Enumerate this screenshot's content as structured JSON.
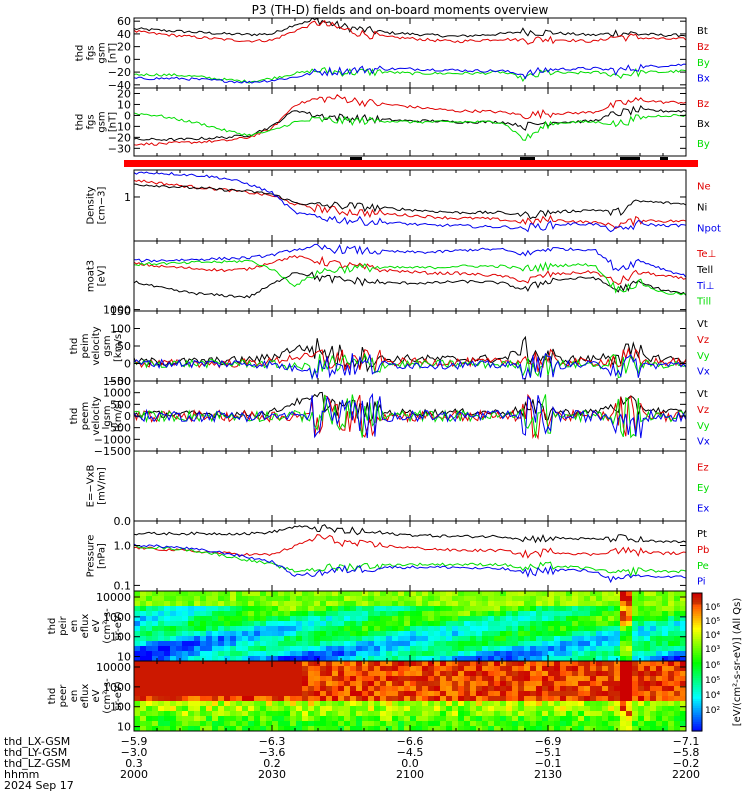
{
  "title": "P3 (TH-D) fields and on-board moments overview",
  "colors": {
    "black": "#000000",
    "red": "#e00000",
    "green": "#00dd00",
    "blue": "#0000ee",
    "flag": "#ff0000"
  },
  "chart_data": [
    {
      "type": "line",
      "ylabel": [
        "thd",
        "fgs",
        "gsm",
        "[nT]"
      ],
      "yrange": [
        -45,
        65
      ],
      "ticks": [
        {
          "v": 60,
          "t": "60"
        },
        {
          "v": 40,
          "t": "40"
        },
        {
          "v": 20,
          "t": "20"
        },
        {
          "v": 0,
          "t": "0"
        },
        {
          "v": -20,
          "t": "−20"
        },
        {
          "v": -40,
          "t": "−40"
        }
      ],
      "series": [
        {
          "name": "Bt",
          "color": "#000000",
          "base": [
            48,
            46,
            44,
            42,
            40,
            39,
            40,
            55,
            62,
            52,
            46,
            42,
            40,
            38,
            36,
            38,
            40,
            44,
            42,
            40,
            38,
            42,
            40,
            38,
            38
          ]
        },
        {
          "name": "Bz",
          "color": "#e00000",
          "base": [
            44,
            40,
            37,
            34,
            31,
            29,
            30,
            45,
            58,
            48,
            40,
            35,
            33,
            30,
            28,
            30,
            32,
            30,
            32,
            30,
            28,
            36,
            34,
            32,
            32
          ]
        },
        {
          "name": "By",
          "color": "#00dd00",
          "base": [
            -24,
            -24,
            -25,
            -28,
            -32,
            -35,
            -30,
            -22,
            -18,
            -20,
            -20,
            -20,
            -22,
            -22,
            -22,
            -22,
            -20,
            -30,
            -20,
            -22,
            -20,
            -25,
            -20,
            -20,
            -18
          ]
        },
        {
          "name": "Bx",
          "color": "#0000ee",
          "base": [
            -30,
            -30,
            -30,
            -32,
            -34,
            -36,
            -33,
            -28,
            -20,
            -18,
            -16,
            -15,
            -15,
            -16,
            -17,
            -18,
            -18,
            -24,
            -16,
            -15,
            -14,
            -18,
            -12,
            -10,
            -8
          ]
        }
      ]
    },
    {
      "type": "line",
      "ylabel": [
        "thd",
        "fgs",
        "gsm",
        "[nT]"
      ],
      "yrange": [
        -37,
        25
      ],
      "ticks": [
        {
          "v": 20,
          "t": "20"
        },
        {
          "v": 10,
          "t": "10"
        },
        {
          "v": 0,
          "t": "0"
        },
        {
          "v": -10,
          "t": "−10"
        },
        {
          "v": -20,
          "t": "−20"
        },
        {
          "v": -30,
          "t": "−30"
        }
      ],
      "series": [
        {
          "name": "Bz",
          "color": "#e00000",
          "base": [
            -26,
            -26,
            -25,
            -24,
            -23,
            -20,
            -12,
            10,
            15,
            16,
            12,
            10,
            8,
            6,
            4,
            4,
            3,
            0,
            2,
            2,
            3,
            10,
            14,
            12,
            12
          ]
        },
        {
          "name": "Bx",
          "color": "#000000",
          "base": [
            -22,
            -22,
            -22,
            -21,
            -20,
            -18,
            -10,
            5,
            0,
            -2,
            -3,
            -4,
            -5,
            -5,
            -6,
            -6,
            -6,
            -10,
            -6,
            -6,
            -5,
            2,
            5,
            4,
            4
          ]
        },
        {
          "name": "By",
          "color": "#00dd00",
          "base": [
            2,
            0,
            -4,
            -8,
            -14,
            -18,
            -14,
            -6,
            -4,
            -5,
            -5,
            -5,
            -6,
            -6,
            -6,
            -6,
            -6,
            -22,
            -8,
            -6,
            -6,
            -8,
            -2,
            0,
            0
          ]
        }
      ]
    },
    {
      "type": "line",
      "ylabel": [
        "Density",
        "[cm−3]"
      ],
      "yrange": [
        0,
        100
      ],
      "ticks": [
        {
          "v": 62,
          "t": "1"
        }
      ],
      "series": [
        {
          "name": "Ne",
          "color": "#e00000",
          "base": [
            86,
            82,
            78,
            75,
            72,
            68,
            64,
            52,
            46,
            42,
            40,
            38,
            36,
            34,
            32,
            32,
            30,
            26,
            30,
            28,
            26,
            22,
            30,
            28,
            28
          ]
        },
        {
          "name": "Ni",
          "color": "#000000",
          "base": [
            80,
            78,
            76,
            74,
            72,
            70,
            66,
            54,
            50,
            50,
            48,
            46,
            44,
            42,
            40,
            40,
            40,
            36,
            40,
            42,
            44,
            40,
            56,
            54,
            52
          ]
        },
        {
          "name": "Npot",
          "color": "#0000ee",
          "base": [
            96,
            96,
            94,
            92,
            88,
            80,
            68,
            40,
            34,
            30,
            28,
            26,
            24,
            22,
            22,
            20,
            20,
            18,
            22,
            24,
            24,
            14,
            24,
            22,
            22
          ]
        }
      ]
    },
    {
      "type": "line",
      "ylabel": [
        "moat3",
        "[eV]"
      ],
      "yrange": [
        0,
        100
      ],
      "ticks": [
        {
          "v": 2,
          "t": "1000"
        }
      ],
      "series": [
        {
          "name": "Te⊥",
          "color": "#e00000",
          "base": [
            68,
            64,
            62,
            60,
            58,
            60,
            70,
            78,
            72,
            66,
            62,
            58,
            56,
            54,
            54,
            52,
            50,
            42,
            52,
            54,
            56,
            40,
            56,
            50,
            46
          ]
        },
        {
          "name": "Tell",
          "color": "#000000",
          "base": [
            42,
            34,
            28,
            24,
            22,
            20,
            38,
            56,
            48,
            44,
            42,
            40,
            40,
            40,
            42,
            42,
            40,
            30,
            44,
            46,
            48,
            30,
            40,
            30,
            24
          ]
        },
        {
          "name": "Ti⊥",
          "color": "#0000ee",
          "base": [
            72,
            72,
            73,
            74,
            75,
            76,
            80,
            88,
            90,
            88,
            86,
            85,
            84,
            84,
            86,
            88,
            88,
            80,
            90,
            88,
            88,
            60,
            72,
            60,
            50
          ]
        },
        {
          "name": "Till",
          "color": "#00dd00",
          "base": [
            66,
            68,
            68,
            70,
            70,
            72,
            60,
            36,
            56,
            60,
            62,
            62,
            62,
            62,
            64,
            64,
            64,
            60,
            64,
            66,
            66,
            30,
            40,
            26,
            24
          ]
        }
      ]
    },
    {
      "type": "line",
      "ylabel": [
        "thd",
        "peim",
        "velocity",
        "gsm",
        "[km/s]"
      ],
      "yrange": [
        -50,
        150
      ],
      "ticks": [
        {
          "v": 150,
          "t": "150"
        },
        {
          "v": 100,
          "t": "100"
        },
        {
          "v": 50,
          "t": "50"
        },
        {
          "v": 0,
          "t": "0"
        },
        {
          "v": -50,
          "t": "−50"
        }
      ],
      "series": [
        {
          "name": "Vt",
          "color": "#000000",
          "base": [
            5,
            5,
            5,
            6,
            8,
            10,
            18,
            45,
            40,
            20,
            15,
            12,
            14,
            12,
            12,
            14,
            12,
            40,
            14,
            12,
            12,
            30,
            20,
            14,
            12
          ]
        },
        {
          "name": "Vz",
          "color": "#e00000",
          "base": [
            0,
            0,
            0,
            0,
            0,
            2,
            5,
            20,
            15,
            8,
            5,
            4,
            4,
            4,
            4,
            4,
            4,
            10,
            4,
            4,
            4,
            10,
            6,
            4,
            4
          ]
        },
        {
          "name": "Vy",
          "color": "#00dd00",
          "base": [
            0,
            0,
            0,
            0,
            0,
            0,
            -2,
            -10,
            -8,
            -4,
            -2,
            -2,
            -2,
            -2,
            -2,
            -2,
            -2,
            -6,
            -2,
            -2,
            -2,
            -8,
            -4,
            -2,
            -2
          ]
        },
        {
          "name": "Vx",
          "color": "#0000ee",
          "base": [
            0,
            0,
            0,
            0,
            0,
            0,
            -3,
            -14,
            -10,
            -6,
            -4,
            -4,
            -4,
            -4,
            -4,
            -4,
            -4,
            -10,
            -4,
            -4,
            -4,
            -10,
            -6,
            -4,
            -4
          ]
        }
      ]
    },
    {
      "type": "line",
      "ylabel": [
        "thd",
        "peem",
        "velocity",
        "gsm",
        "[km/s]"
      ],
      "yrange": [
        -1500,
        1500
      ],
      "ticks": [
        {
          "v": 1500,
          "t": "1500"
        },
        {
          "v": 1000,
          "t": "1000"
        },
        {
          "v": 500,
          "t": "500"
        },
        {
          "v": 0,
          "t": "0"
        },
        {
          "v": -500,
          "t": "−500"
        },
        {
          "v": -1000,
          "t": "−1000"
        },
        {
          "v": -1500,
          "t": "−1500"
        }
      ],
      "series": [
        {
          "name": "Vt",
          "color": "#000000",
          "base": [
            80,
            80,
            80,
            80,
            80,
            90,
            150,
            600,
            700,
            400,
            200,
            150,
            150,
            150,
            160,
            160,
            160,
            300,
            180,
            160,
            160,
            500,
            350,
            200,
            160
          ]
        },
        {
          "name": "Vz",
          "color": "#e00000",
          "base": [
            0,
            0,
            0,
            0,
            0,
            0,
            0,
            0,
            0,
            0,
            0,
            0,
            0,
            0,
            0,
            0,
            0,
            0,
            0,
            0,
            0,
            0,
            0,
            0,
            0
          ]
        },
        {
          "name": "Vy",
          "color": "#00dd00",
          "base": [
            0,
            0,
            0,
            0,
            0,
            0,
            0,
            0,
            0,
            0,
            0,
            0,
            0,
            0,
            0,
            0,
            0,
            0,
            0,
            0,
            0,
            0,
            0,
            0,
            0
          ]
        },
        {
          "name": "Vx",
          "color": "#0000ee",
          "base": [
            0,
            0,
            0,
            0,
            0,
            0,
            0,
            0,
            0,
            0,
            0,
            0,
            0,
            0,
            0,
            0,
            0,
            0,
            0,
            0,
            0,
            0,
            0,
            0,
            0
          ]
        }
      ]
    },
    {
      "type": "line",
      "ylabel": [
        "E=−VxB",
        "[mV/m]"
      ],
      "yrange": [
        0,
        1
      ],
      "ticks": [],
      "series": [
        {
          "name": "Ez",
          "color": "#e00000",
          "base": []
        },
        {
          "name": "Ey",
          "color": "#00dd00",
          "base": []
        },
        {
          "name": "Ex",
          "color": "#0000ee",
          "base": []
        }
      ]
    },
    {
      "type": "line",
      "ylabel": [
        "Pressure",
        "[nPa]"
      ],
      "yrange": [
        0,
        100
      ],
      "ticks": [
        {
          "v": 100,
          "t": "0.0"
        },
        {
          "v": 65,
          "t": "1.0"
        },
        {
          "v": 8,
          "t": "0.1"
        }
      ],
      "series": [
        {
          "name": "Pt",
          "color": "#000000",
          "base": [
            82,
            82,
            82,
            82,
            82,
            82,
            84,
            92,
            90,
            86,
            84,
            82,
            80,
            79,
            78,
            78,
            78,
            74,
            76,
            75,
            74,
            76,
            72,
            70,
            70
          ]
        },
        {
          "name": "Pb",
          "color": "#e00000",
          "base": [
            62,
            60,
            58,
            56,
            54,
            52,
            52,
            64,
            78,
            70,
            66,
            64,
            62,
            60,
            58,
            58,
            58,
            52,
            56,
            54,
            52,
            58,
            56,
            54,
            54
          ]
        },
        {
          "name": "Pe",
          "color": "#00dd00",
          "base": [
            64,
            62,
            60,
            56,
            50,
            44,
            38,
            28,
            32,
            34,
            36,
            37,
            38,
            38,
            38,
            38,
            38,
            32,
            36,
            34,
            32,
            24,
            30,
            28,
            28
          ]
        },
        {
          "name": "Pi",
          "color": "#0000ee",
          "base": [
            66,
            64,
            62,
            58,
            54,
            48,
            42,
            22,
            26,
            30,
            32,
            34,
            34,
            34,
            34,
            32,
            32,
            26,
            30,
            30,
            28,
            14,
            22,
            20,
            20
          ]
        }
      ]
    },
    {
      "type": "heatmap",
      "ylabel": [
        "thd",
        "peir",
        "en",
        "eflux",
        "eV",
        "(cm²-s-",
        "sr-eV)"
      ],
      "ticks": [
        {
          "v": 10000,
          "t": "10000"
        },
        {
          "v": 1000,
          "t": "1000"
        },
        {
          "v": 100,
          "t": "100"
        },
        {
          "v": 10,
          "t": "10"
        }
      ],
      "yrange": [
        6,
        20000
      ],
      "cmap": "ion"
    },
    {
      "type": "heatmap",
      "ylabel": [
        "thd",
        "peer",
        "en",
        "eflux",
        "eV",
        "(cm²-s-",
        "sr-eV)"
      ],
      "ticks": [
        {
          "v": 10000,
          "t": "10000"
        },
        {
          "v": 1000,
          "t": "1000"
        },
        {
          "v": 100,
          "t": "100"
        },
        {
          "v": 10,
          "t": "10"
        }
      ],
      "yrange": [
        6,
        20000
      ],
      "cmap": "electron"
    }
  ],
  "colorbar": {
    "label": "[eV/(cm²-s-sr-eV)] (All Qs)",
    "ticks_top": [
      "10⁶",
      "10⁵",
      "10⁴",
      "10³"
    ],
    "ticks_bottom": [
      "10⁶",
      "10⁵",
      "10⁴",
      "10²"
    ]
  },
  "xaxis": {
    "row_labels": [
      "thd_LX-GSM",
      "thd_LY-GSM",
      "thd_LZ-GSM",
      "hhmm",
      "2024 Sep 17"
    ],
    "columns": [
      {
        "lx": "−5.9",
        "ly": "−3.0",
        "lz": "0.3",
        "hhmm": "2000"
      },
      {
        "lx": "−6.3",
        "ly": "−3.6",
        "lz": "0.2",
        "hhmm": "2030"
      },
      {
        "lx": "−6.6",
        "ly": "−4.5",
        "lz": "0.0",
        "hhmm": "2100"
      },
      {
        "lx": "−6.9",
        "ly": "−5.1",
        "lz": "−0.1",
        "hhmm": "2130"
      },
      {
        "lx": "−7.1",
        "ly": "−5.8",
        "lz": "−0.2",
        "hhmm": "2200"
      }
    ]
  }
}
